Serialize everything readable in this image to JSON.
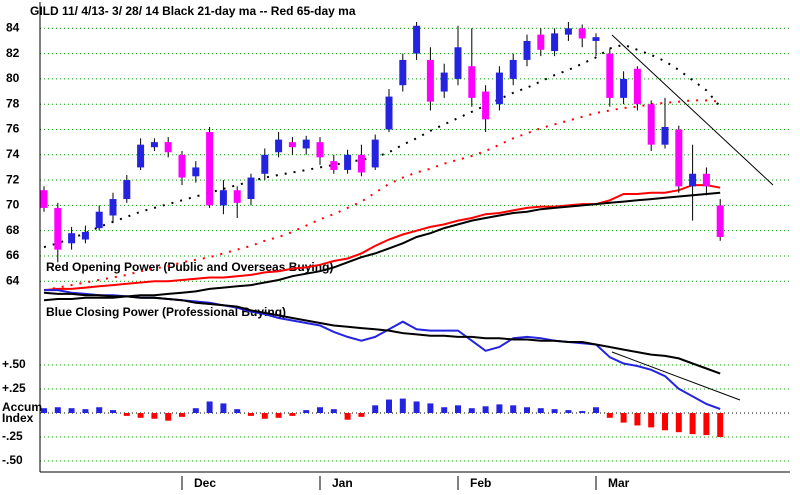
{
  "chart_data": [
    {
      "type": "candlestick",
      "title": "GILD   11/ 4/13- 3/ 28/ 14   Black 21-day ma --  Red 65-day ma",
      "annotations": [
        "Red Opening Power (Public and Overseas Buying)",
        "Blue Closing Power (Professional Buying)"
      ],
      "categories": [
        null,
        null,
        null,
        null,
        null,
        null,
        null,
        null,
        null,
        null,
        "Dec",
        null,
        null,
        null,
        null,
        null,
        null,
        null,
        null,
        null,
        "Jan",
        null,
        null,
        null,
        null,
        null,
        null,
        null,
        null,
        null,
        "Feb",
        null,
        null,
        null,
        null,
        null,
        null,
        null,
        null,
        null,
        "Mar",
        null,
        null,
        null,
        null,
        null,
        null,
        null,
        null,
        null
      ],
      "open": [
        71.2,
        69.8,
        67.0,
        67.3,
        68.2,
        69.2,
        70.5,
        73.0,
        74.6,
        75.0,
        74.0,
        72.3,
        75.8,
        70.0,
        71.2,
        70.5,
        72.5,
        74.2,
        75.0,
        74.5,
        75.0,
        73.5,
        72.8,
        74.0,
        73.0,
        76.0,
        79.5,
        82.0,
        81.5,
        79.0,
        80.0,
        81.0,
        79.0,
        78.0,
        80.0,
        81.5,
        83.5,
        82.2,
        83.5,
        84.0,
        83.0,
        82.0,
        78.5,
        80.8,
        78.0,
        74.8,
        76.0,
        71.5,
        72.5,
        70.0
      ],
      "high": [
        71.5,
        70.2,
        68.3,
        68.4,
        70.0,
        71.0,
        72.4,
        75.3,
        75.3,
        75.4,
        74.3,
        73.5,
        76.2,
        72.0,
        71.5,
        72.5,
        74.5,
        75.8,
        75.4,
        75.5,
        75.4,
        74.0,
        74.4,
        74.8,
        75.6,
        79.2,
        82.0,
        84.5,
        82.5,
        81.2,
        84.2,
        84.0,
        79.5,
        81.0,
        82.0,
        83.5,
        84.0,
        84.0,
        84.5,
        84.3,
        83.6,
        82.4,
        80.6,
        81.0,
        78.3,
        78.5,
        76.3,
        74.8,
        73.0,
        70.5
      ],
      "low": [
        69.5,
        65.5,
        66.5,
        67.0,
        68.0,
        68.6,
        70.2,
        72.8,
        74.3,
        73.8,
        71.6,
        71.8,
        69.8,
        69.3,
        69.0,
        70.0,
        72.0,
        73.8,
        74.0,
        74.0,
        73.2,
        72.5,
        72.5,
        72.3,
        72.8,
        75.8,
        79.0,
        81.5,
        77.5,
        78.5,
        79.5,
        77.8,
        75.8,
        77.5,
        79.5,
        81.0,
        81.8,
        81.8,
        83.0,
        82.5,
        81.8,
        77.8,
        78.0,
        77.5,
        74.3,
        74.5,
        71.0,
        68.8,
        70.8,
        67.2
      ],
      "close": [
        69.8,
        66.5,
        67.8,
        67.9,
        69.5,
        70.5,
        72.0,
        74.8,
        75.0,
        74.2,
        72.2,
        73.0,
        70.0,
        71.2,
        70.2,
        72.2,
        74.0,
        75.2,
        74.6,
        75.2,
        73.8,
        72.8,
        74.0,
        72.6,
        75.2,
        78.6,
        81.5,
        84.2,
        78.2,
        80.5,
        82.5,
        78.5,
        76.8,
        80.5,
        81.5,
        83.0,
        82.3,
        83.6,
        84.0,
        83.2,
        83.3,
        78.5,
        80.0,
        78.0,
        74.8,
        76.2,
        71.5,
        72.5,
        71.5,
        67.5
      ],
      "up_color": "#2424e0",
      "down_color": "#ff00ff",
      "series": [
        {
          "color": "#000000",
          "style": "dotted",
          "values": [
            66.7,
            67.0,
            67.4,
            67.8,
            68.3,
            68.7,
            69.1,
            69.5,
            69.8,
            70.1,
            70.4,
            70.7,
            71.0,
            71.3,
            71.6,
            71.9,
            72.2,
            72.4,
            72.6,
            72.8,
            73.0,
            73.2,
            73.4,
            73.6,
            73.8,
            74.2,
            74.8,
            75.3,
            75.9,
            76.4,
            76.9,
            77.4,
            77.9,
            78.4,
            78.9,
            79.3,
            79.8,
            80.3,
            80.7,
            81.2,
            81.7,
            82.4,
            82.7,
            82.3,
            81.9,
            81.4,
            80.7,
            79.9,
            79.1,
            77.8
          ]
        },
        {
          "color": "#ff0000",
          "style": "dotted",
          "values": [
            63.3,
            63.5,
            63.7,
            63.9,
            64.1,
            64.3,
            64.5,
            64.8,
            65.0,
            65.2,
            65.5,
            65.7,
            65.9,
            66.2,
            66.5,
            66.8,
            67.2,
            67.5,
            67.9,
            68.4,
            68.9,
            69.3,
            69.8,
            70.3,
            71.0,
            71.7,
            72.2,
            72.6,
            72.9,
            73.3,
            73.6,
            73.9,
            74.3,
            74.8,
            75.3,
            75.7,
            76.1,
            76.4,
            76.7,
            77.0,
            77.3,
            77.5,
            77.7,
            77.8,
            78.0,
            78.1,
            78.2,
            78.3,
            78.3,
            78.2
          ]
        },
        {
          "color": "#ff0000",
          "style": "solid",
          "values": [
            63.3,
            63.4,
            63.4,
            63.5,
            63.6,
            63.7,
            63.8,
            63.9,
            64.0,
            64.0,
            64.1,
            64.2,
            64.3,
            64.3,
            64.4,
            64.5,
            64.7,
            64.8,
            65.0,
            65.1,
            65.3,
            65.6,
            65.8,
            66.2,
            66.8,
            67.3,
            67.7,
            68.0,
            68.3,
            68.5,
            68.8,
            69.0,
            69.3,
            69.4,
            69.6,
            69.8,
            69.9,
            69.9,
            70.0,
            70.1,
            70.1,
            70.4,
            70.9,
            70.9,
            71.0,
            71.0,
            71.2,
            71.6,
            71.6,
            71.4
          ]
        },
        {
          "color": "#000000",
          "style": "solid",
          "values": [
            62.5,
            62.6,
            62.6,
            62.7,
            62.7,
            62.7,
            62.8,
            62.9,
            62.9,
            63.0,
            63.1,
            63.2,
            63.4,
            63.5,
            63.6,
            63.7,
            63.9,
            64.1,
            64.4,
            64.6,
            64.8,
            65.1,
            65.5,
            65.9,
            66.2,
            66.6,
            67.0,
            67.5,
            67.8,
            68.2,
            68.5,
            68.8,
            69.0,
            69.2,
            69.4,
            69.5,
            69.7,
            69.8,
            69.9,
            70.0,
            70.1,
            70.2,
            70.3,
            70.4,
            70.5,
            70.6,
            70.7,
            70.8,
            70.9,
            71.0
          ]
        },
        {
          "color": "#2424e0",
          "style": "solid",
          "values": [
            63.3,
            63.3,
            63.1,
            63.0,
            62.9,
            62.9,
            62.8,
            62.7,
            62.7,
            62.6,
            62.5,
            62.4,
            62.3,
            62.1,
            61.9,
            61.6,
            61.4,
            61.1,
            60.9,
            60.7,
            60.5,
            60.0,
            59.6,
            59.3,
            59.6,
            60.2,
            60.8,
            60.2,
            60.1,
            60.1,
            60.1,
            59.3,
            58.5,
            58.8,
            59.5,
            59.6,
            59.5,
            59.3,
            59.2,
            59.1,
            59.0,
            58.0,
            57.5,
            57.3,
            57.0,
            56.5,
            55.5,
            54.9,
            54.3,
            53.9
          ]
        },
        {
          "color": "#000000",
          "style": "solid",
          "values": [
            63.1,
            63.0,
            63.0,
            62.9,
            62.9,
            62.8,
            62.8,
            62.7,
            62.7,
            62.6,
            62.5,
            62.3,
            62.2,
            62.1,
            62.0,
            61.7,
            61.5,
            61.3,
            61.1,
            60.9,
            60.7,
            60.5,
            60.4,
            60.3,
            60.2,
            60.1,
            59.9,
            59.8,
            59.7,
            59.7,
            59.6,
            59.6,
            59.5,
            59.5,
            59.4,
            59.4,
            59.3,
            59.3,
            59.2,
            59.2,
            59.0,
            58.8,
            58.6,
            58.4,
            58.2,
            58.1,
            57.9,
            57.5,
            57.1,
            56.7
          ]
        }
      ],
      "ylim": [
        49,
        86
      ],
      "yticks": [
        64,
        66,
        68,
        70,
        72,
        74,
        76,
        78,
        80,
        82,
        84
      ],
      "grid": true,
      "grid_color": "#00a000"
    },
    {
      "type": "bar",
      "values": [
        0.05,
        0.06,
        0.05,
        0.04,
        0.06,
        0.03,
        -0.03,
        -0.05,
        -0.06,
        -0.08,
        -0.04,
        0.05,
        0.12,
        0.1,
        0.04,
        -0.03,
        -0.06,
        -0.05,
        -0.03,
        0.03,
        0.06,
        0.04,
        -0.07,
        -0.04,
        0.08,
        0.14,
        0.15,
        0.12,
        0.1,
        0.06,
        0.08,
        0.05,
        0.07,
        0.09,
        0.08,
        0.06,
        0.05,
        0.04,
        0.03,
        0.02,
        0.06,
        -0.05,
        -0.1,
        -0.13,
        -0.15,
        -0.18,
        -0.2,
        -0.22,
        -0.23,
        -0.25
      ],
      "pos_color": "#2424e0",
      "neg_color": "#ff0000",
      "ylim": [
        -0.5,
        0.5
      ],
      "yticks": [
        {
          "value": 0.5,
          "label": "+.50"
        },
        {
          "value": 0.25,
          "label": "+.25"
        },
        {
          "value": 0,
          "label": "Accum Index"
        },
        {
          "value": -0.25,
          "label": "-.25"
        },
        {
          "value": -0.5,
          "label": "-.50"
        }
      ],
      "grid": true,
      "grid_color": "#00a000"
    }
  ]
}
